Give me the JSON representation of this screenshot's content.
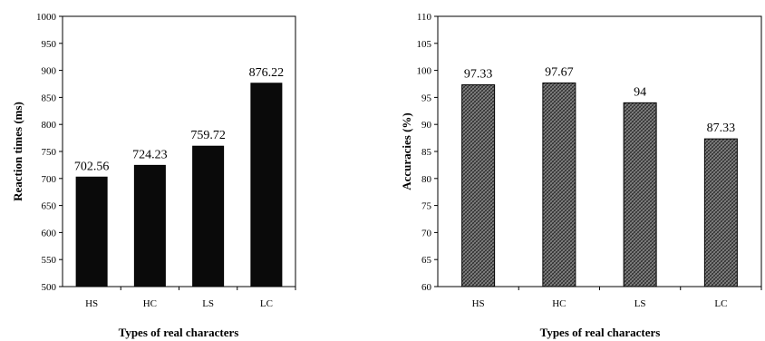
{
  "chart_data": [
    {
      "type": "bar",
      "categories": [
        "HS",
        "HC",
        "LS",
        "LC"
      ],
      "values": [
        702.56,
        724.23,
        759.72,
        876.22
      ],
      "data_labels": [
        "702.56",
        "724.23",
        "759.72",
        "876.22"
      ],
      "xlabel": "Types of real characters",
      "ylabel": "Reaction times (ms)",
      "ylim": [
        500,
        1000
      ],
      "yticks": [
        "500",
        "550",
        "600",
        "650",
        "700",
        "750",
        "800",
        "850",
        "900",
        "950",
        "1000"
      ],
      "bar_color": "#0a0a0a",
      "grid": false
    },
    {
      "type": "bar",
      "categories": [
        "HS",
        "HC",
        "LS",
        "LC"
      ],
      "values": [
        97.33,
        97.67,
        94,
        87.33
      ],
      "data_labels": [
        "97.33",
        "97.67",
        "94",
        "87.33"
      ],
      "xlabel": "Types of real characters",
      "ylabel": "Accuracies (%)",
      "ylim": [
        60,
        110
      ],
      "yticks": [
        "60",
        "65",
        "70",
        "75",
        "80",
        "85",
        "90",
        "95",
        "100",
        "105",
        "110"
      ],
      "bar_color": "#5a5a5a",
      "bar_pattern": "crosshatch",
      "grid": false
    }
  ]
}
